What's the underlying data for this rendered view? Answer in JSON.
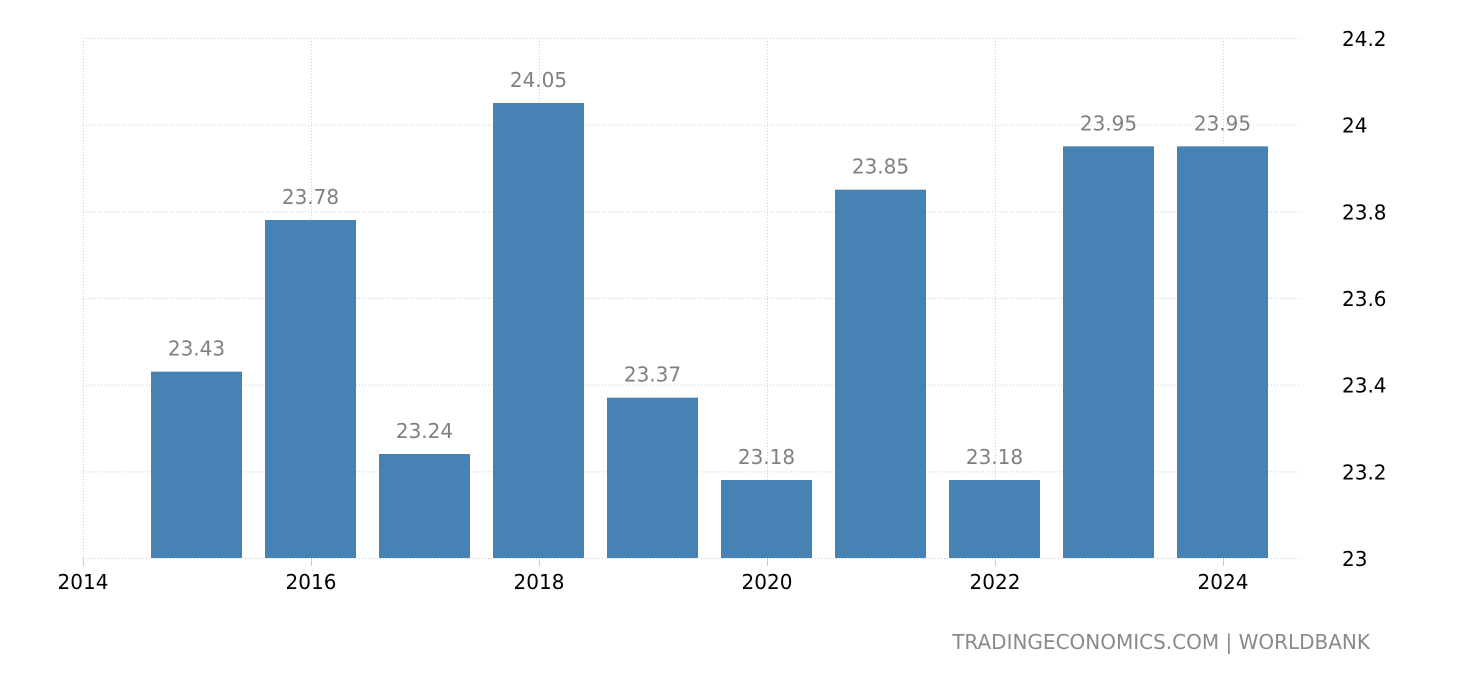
{
  "chart_data": {
    "type": "bar",
    "title": "",
    "xlabel": "",
    "ylabel": "",
    "categories": [
      "2015",
      "2016",
      "2017",
      "2018",
      "2019",
      "2020",
      "2021",
      "2022",
      "2023",
      "2024"
    ],
    "values": [
      23.43,
      23.78,
      23.24,
      24.05,
      23.37,
      23.18,
      23.85,
      23.18,
      23.95,
      23.95
    ],
    "data_labels": [
      "23.43",
      "23.78",
      "23.24",
      "24.05",
      "23.37",
      "23.18",
      "23.85",
      "23.18",
      "23.95",
      "23.95"
    ],
    "x_ticks": [
      "2014",
      "2016",
      "2018",
      "2020",
      "2022",
      "2024"
    ],
    "x_tick_values": [
      2014,
      2016,
      2018,
      2020,
      2022,
      2024
    ],
    "y_ticks": [
      "23",
      "23.2",
      "23.4",
      "23.6",
      "23.8",
      "24",
      "24.2"
    ],
    "y_tick_values": [
      23,
      23.2,
      23.4,
      23.6,
      23.8,
      24,
      24.2
    ],
    "ylim": [
      23,
      24.2
    ],
    "xlim": [
      2014,
      2024.65
    ],
    "grid": true,
    "y_axis_position": "right",
    "legend": null,
    "colors": {
      "bar": "#4682b4",
      "label": "#808080",
      "grid": "#cccccc",
      "tick": "#000000"
    }
  },
  "footer": {
    "source": "TRADINGECONOMICS.COM | WORLDBANK"
  }
}
